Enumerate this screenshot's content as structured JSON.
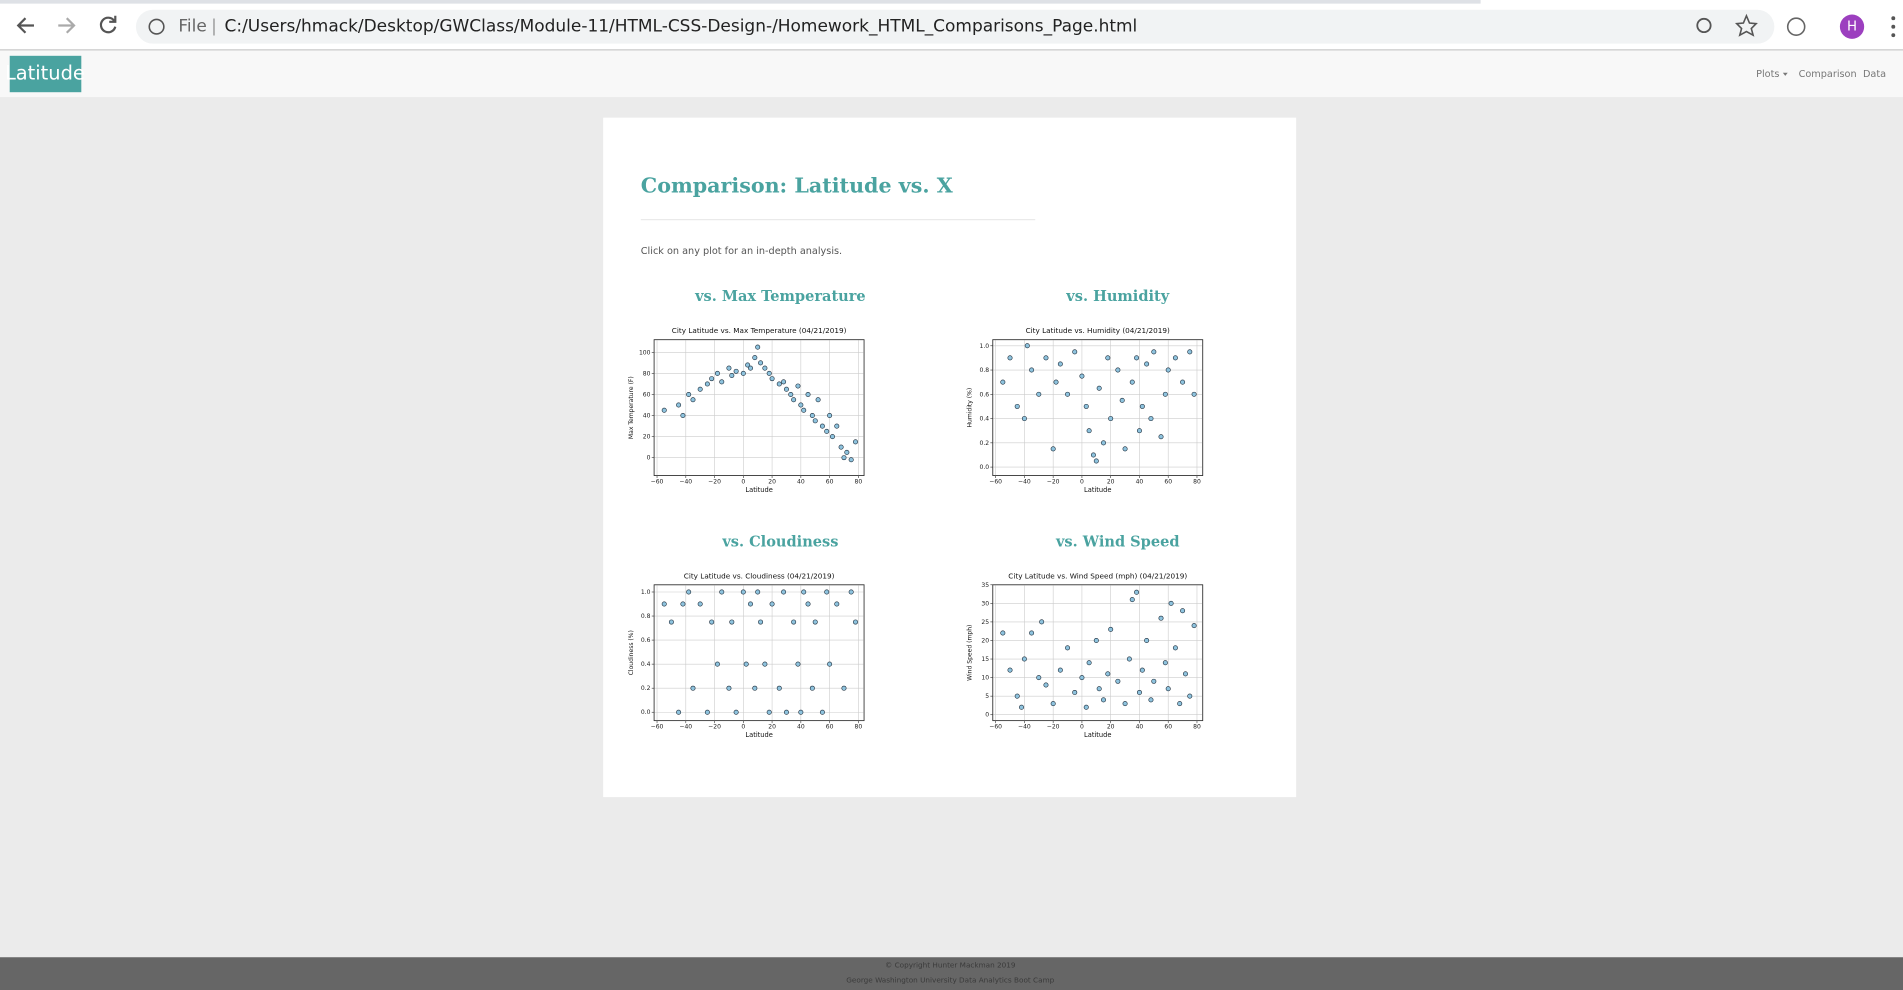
{
  "browser": {
    "scheme": "File",
    "url": "C:/Users/hmack/Desktop/GWClass/Module-11/HTML-CSS-Design-/Homework_HTML_Comparisons_Page.html",
    "profile_initial": "H"
  },
  "navbar": {
    "brand": "Latitude",
    "links": [
      "Plots",
      "Comparison",
      "Data"
    ]
  },
  "page": {
    "title": "Comparison: Latitude vs. X",
    "intro": "Click on any plot for an in-depth analysis."
  },
  "plots": [
    {
      "heading": "vs. Max Temperature",
      "chart_data": {
        "type": "scatter",
        "title": "City Latitude vs. Max Temperature (04/21/2019)",
        "x_label": "Latitude",
        "y_label": "Max Temperature (F)",
        "xlim": [
          -62,
          84
        ],
        "ylim": [
          -17,
          112
        ],
        "xticks": [
          {
            "value": -60,
            "label": "−60"
          },
          {
            "value": -40,
            "label": "−40"
          },
          {
            "value": -20,
            "label": "−20"
          },
          0,
          20,
          40,
          60,
          80
        ],
        "yticks": [
          0,
          20,
          40,
          60,
          80,
          100
        ],
        "grid": true,
        "color": "#8ec3de",
        "edgecolor": "#1b2a38",
        "x": [
          -55,
          -45,
          -42,
          -38,
          -35,
          -30,
          -25,
          -22,
          -18,
          -15,
          -10,
          -8,
          -5,
          0,
          3,
          5,
          8,
          10,
          12,
          15,
          18,
          20,
          25,
          28,
          30,
          33,
          35,
          38,
          40,
          42,
          45,
          48,
          50,
          52,
          55,
          58,
          60,
          62,
          65,
          68,
          70,
          72,
          75,
          78
        ],
        "values": [
          45,
          50,
          40,
          60,
          55,
          65,
          70,
          75,
          80,
          72,
          85,
          78,
          82,
          80,
          88,
          85,
          95,
          105,
          90,
          85,
          80,
          75,
          70,
          72,
          65,
          60,
          55,
          68,
          50,
          45,
          60,
          40,
          35,
          55,
          30,
          25,
          40,
          20,
          30,
          10,
          0,
          5,
          -2,
          15
        ]
      }
    },
    {
      "heading": "vs. Humidity",
      "chart_data": {
        "type": "scatter",
        "title": "City Latitude vs. Humidity (04/21/2019)",
        "x_label": "Latitude",
        "y_label": "Humidity (%)",
        "xlim": [
          -62,
          84
        ],
        "ylim": [
          -0.07,
          1.05
        ],
        "xticks": [
          {
            "value": -60,
            "label": "−60"
          },
          {
            "value": -40,
            "label": "−40"
          },
          {
            "value": -20,
            "label": "−20"
          },
          0,
          20,
          40,
          60,
          80
        ],
        "yticks": [
          {
            "value": 0,
            "label": "0.0"
          },
          0.2,
          0.4,
          0.6,
          0.8,
          {
            "value": 1,
            "label": "1.0"
          }
        ],
        "grid": true,
        "color": "#8ec3de",
        "edgecolor": "#1b2a38",
        "x": [
          -55,
          -50,
          -45,
          -40,
          -38,
          -35,
          -30,
          -25,
          -20,
          -18,
          -15,
          -10,
          -5,
          0,
          3,
          5,
          8,
          10,
          12,
          15,
          18,
          20,
          25,
          28,
          30,
          35,
          38,
          40,
          42,
          45,
          48,
          50,
          55,
          58,
          60,
          65,
          70,
          75,
          78
        ],
        "values": [
          0.7,
          0.9,
          0.5,
          0.4,
          1.0,
          0.8,
          0.6,
          0.9,
          0.15,
          0.7,
          0.85,
          0.6,
          0.95,
          0.75,
          0.5,
          0.3,
          0.1,
          0.05,
          0.65,
          0.2,
          0.9,
          0.4,
          0.8,
          0.55,
          0.15,
          0.7,
          0.9,
          0.3,
          0.5,
          0.85,
          0.4,
          0.95,
          0.25,
          0.6,
          0.8,
          0.9,
          0.7,
          0.95,
          0.6
        ]
      }
    },
    {
      "heading": "vs. Cloudiness",
      "chart_data": {
        "type": "scatter",
        "title": "City Latitude vs. Cloudiness (04/21/2019)",
        "x_label": "Latitude",
        "y_label": "Cloudiness (%)",
        "xlim": [
          -62,
          84
        ],
        "ylim": [
          -0.07,
          1.06
        ],
        "xticks": [
          {
            "value": -60,
            "label": "−60"
          },
          {
            "value": -40,
            "label": "−40"
          },
          {
            "value": -20,
            "label": "−20"
          },
          0,
          20,
          40,
          60,
          80
        ],
        "yticks": [
          {
            "value": 0,
            "label": "0.0"
          },
          0.2,
          0.4,
          0.6,
          0.8,
          {
            "value": 1,
            "label": "1.0"
          }
        ],
        "grid": true,
        "color": "#8ec3de",
        "edgecolor": "#1b2a38",
        "x": [
          -55,
          -50,
          -45,
          -42,
          -38,
          -35,
          -30,
          -25,
          -22,
          -18,
          -15,
          -10,
          -8,
          -5,
          0,
          2,
          5,
          8,
          10,
          12,
          15,
          18,
          20,
          25,
          28,
          30,
          35,
          38,
          40,
          42,
          45,
          48,
          50,
          55,
          58,
          60,
          65,
          70,
          75,
          78
        ],
        "values": [
          0.9,
          0.75,
          0,
          0.9,
          1,
          0.2,
          0.9,
          0,
          0.75,
          0.4,
          1,
          0.2,
          0.75,
          0,
          1,
          0.4,
          0.9,
          0.2,
          1,
          0.75,
          0.4,
          0,
          0.9,
          0.2,
          1,
          0,
          0.75,
          0.4,
          0,
          1,
          0.9,
          0.2,
          0.75,
          0,
          1,
          0.4,
          0.9,
          0.2,
          1,
          0.75
        ]
      }
    },
    {
      "heading": "vs. Wind Speed",
      "chart_data": {
        "type": "scatter",
        "title": "City Latitude vs. Wind Speed (mph) (04/21/2019)",
        "x_label": "Latitude",
        "y_label": "Wind Speed (mph)",
        "xlim": [
          -62,
          84
        ],
        "ylim": [
          -1.6,
          35
        ],
        "xticks": [
          {
            "value": -60,
            "label": "−60"
          },
          {
            "value": -40,
            "label": "−40"
          },
          {
            "value": -20,
            "label": "−20"
          },
          0,
          20,
          40,
          60,
          80
        ],
        "yticks": [
          0,
          5,
          10,
          15,
          20,
          25,
          30,
          35
        ],
        "grid": true,
        "color": "#8ec3de",
        "edgecolor": "#1b2a38",
        "x": [
          -55,
          -50,
          -45,
          -42,
          -40,
          -35,
          -30,
          -28,
          -25,
          -20,
          -15,
          -10,
          -5,
          0,
          3,
          5,
          10,
          12,
          15,
          18,
          20,
          25,
          30,
          33,
          35,
          38,
          40,
          42,
          45,
          48,
          50,
          55,
          58,
          60,
          62,
          65,
          68,
          70,
          72,
          75,
          78
        ],
        "values": [
          22,
          12,
          5,
          2,
          15,
          22,
          10,
          25,
          8,
          3,
          12,
          18,
          6,
          10,
          2,
          14,
          20,
          7,
          4,
          11,
          23,
          9,
          3,
          15,
          31,
          33,
          6,
          12,
          20,
          4,
          9,
          26,
          14,
          7,
          30,
          18,
          3,
          28,
          11,
          5,
          24
        ]
      }
    }
  ],
  "footer": {
    "copyright": "© Copyright Hunter Mackman 2019",
    "school": "George Washington University Data Analytics Boot Camp"
  }
}
